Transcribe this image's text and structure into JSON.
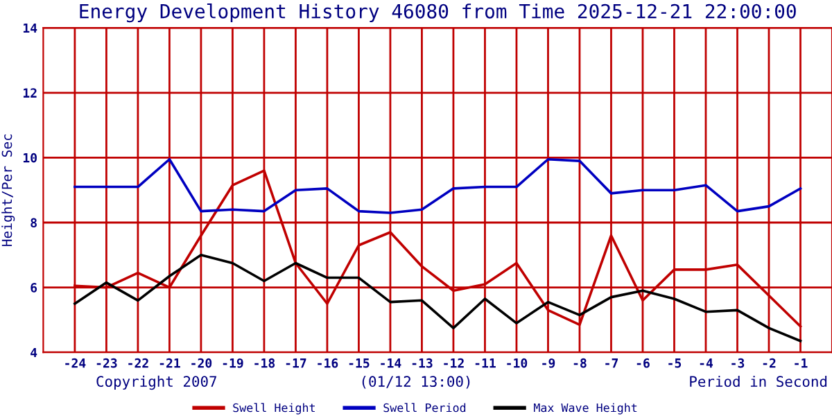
{
  "chart_data": {
    "type": "line",
    "title": "Energy Development History 46080 from Time 2025-12-21 22:00:00",
    "ylabel": "Height/Per Sec",
    "x": [
      -24,
      -23,
      -22,
      -21,
      -20,
      -19,
      -18,
      -17,
      -16,
      -15,
      -14,
      -13,
      -12,
      -11,
      -10,
      -9,
      -8,
      -7,
      -6,
      -5,
      -4,
      -3,
      -2,
      -1
    ],
    "series": [
      {
        "name": "Swell Height",
        "color": "#c00000",
        "values": [
          6.05,
          6.0,
          6.45,
          6.0,
          7.6,
          9.15,
          9.6,
          6.75,
          5.5,
          7.3,
          7.7,
          6.65,
          5.9,
          6.1,
          6.75,
          5.3,
          4.85,
          7.6,
          5.6,
          6.55,
          6.55,
          6.7,
          5.75,
          4.8
        ]
      },
      {
        "name": "Swell Period",
        "color": "#0000c0",
        "values": [
          9.1,
          9.1,
          9.1,
          9.95,
          8.35,
          8.4,
          8.35,
          9.0,
          9.05,
          8.35,
          8.3,
          8.4,
          9.05,
          9.1,
          9.1,
          9.95,
          9.9,
          8.9,
          9.0,
          9.0,
          9.15,
          8.35,
          8.5,
          9.05
        ]
      },
      {
        "name": "Max Wave Height",
        "color": "#000000",
        "values": [
          5.5,
          6.15,
          5.6,
          6.35,
          7.0,
          6.75,
          6.2,
          6.75,
          6.3,
          6.3,
          5.55,
          5.6,
          4.75,
          5.65,
          4.9,
          5.55,
          5.15,
          5.7,
          5.9,
          5.65,
          5.25,
          5.3,
          4.75,
          4.35
        ]
      }
    ],
    "xlim": [
      -25,
      0
    ],
    "ylim": [
      4,
      14
    ],
    "xticks": [
      -24,
      -23,
      -22,
      -21,
      -20,
      -19,
      -18,
      -17,
      -16,
      -15,
      -14,
      -13,
      -12,
      -11,
      -10,
      -9,
      -8,
      -7,
      -6,
      -5,
      -4,
      -3,
      -2,
      -1
    ],
    "yticks": [
      4,
      6,
      8,
      10,
      12,
      14
    ],
    "grid": true,
    "legend": "bottom",
    "annotations": [
      "Copyright 2007",
      "(01/12 13:00)",
      "Period in Second"
    ]
  }
}
